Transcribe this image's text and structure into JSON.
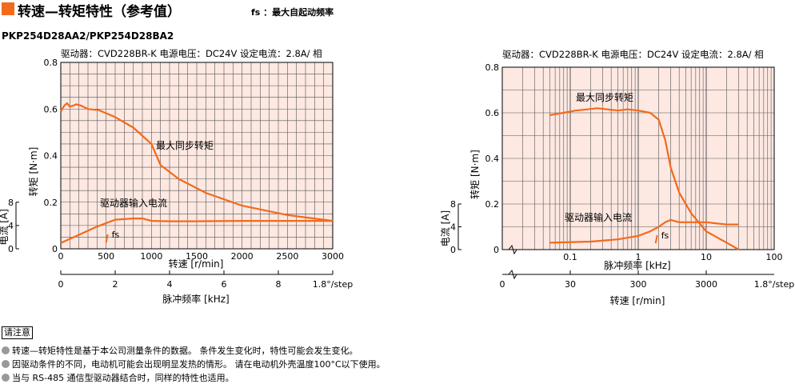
{
  "header": {
    "title": "转速—转矩特性（参考值）",
    "fs_note": "fs ：最大自起动频率"
  },
  "model": "PKP254D28AA2/PKP254D28BA2",
  "colors": {
    "accent": "#f26a1b",
    "plot_bg": "#fde8e2",
    "curve": "#f26a1b"
  },
  "chart_data": [
    {
      "type": "line",
      "subtitle": "驱动器：CVD228BR-K  电源电压：DC24V  设定电流：2.8A/ 相",
      "xscale": "linear",
      "xlabel": "转速 [r/min]",
      "xlim": [
        0,
        3000
      ],
      "xticks": [
        0,
        500,
        1000,
        1500,
        2000,
        2500,
        3000
      ],
      "ylabel": "转矩 [N·m]",
      "ylim": [
        0,
        0.8
      ],
      "yticks": [
        0,
        0.2,
        0.4,
        0.6,
        0.8
      ],
      "y2label": "电流 [A]",
      "y2ticks": [
        0,
        4,
        8
      ],
      "x2label": "脉冲频率 [kHz]",
      "x2ticks": [
        "0",
        "2",
        "4",
        "6",
        "8"
      ],
      "x2_unit": "1.8°/step",
      "grid": true,
      "series": [
        {
          "name": "最大同步转矩",
          "x": [
            0,
            40,
            70,
            100,
            140,
            170,
            220,
            300,
            420,
            600,
            800,
            1000,
            1100,
            1300,
            1600,
            2000,
            2500,
            3000
          ],
          "y": [
            0.59,
            0.615,
            0.625,
            0.61,
            0.615,
            0.62,
            0.615,
            0.6,
            0.595,
            0.565,
            0.52,
            0.45,
            0.36,
            0.3,
            0.24,
            0.185,
            0.145,
            0.12
          ]
        },
        {
          "name": "驱动器输入电流",
          "x": [
            0,
            200,
            400,
            600,
            800,
            900,
            1000,
            1200,
            1500,
            2000,
            2500,
            3000
          ],
          "y": [
            0.025,
            0.06,
            0.095,
            0.125,
            0.13,
            0.13,
            0.12,
            0.118,
            0.118,
            0.12,
            0.12,
            0.12
          ]
        }
      ],
      "fs_label": "fs",
      "fs_x": 500
    },
    {
      "type": "line",
      "subtitle": "驱动器：CVD228BR-K  电源电压：DC24V  设定电流：2.8A/ 相",
      "xscale": "log",
      "xlabel": "脉冲频率 [kHz]",
      "xlim": [
        0.01,
        100
      ],
      "xticks": [
        "0.1",
        "1",
        "10",
        "100"
      ],
      "ylabel": "转矩 [N·m]",
      "ylim": [
        0,
        0.8
      ],
      "yticks": [
        0,
        0.2,
        0.4,
        0.6,
        0.8
      ],
      "y2label": "电流 [A]",
      "y2ticks": [
        0,
        4,
        8
      ],
      "x2label": "转速 [r/min]",
      "x2ticks": [
        "0",
        "30",
        "300",
        "3000"
      ],
      "x2_unit": "1.8°/step",
      "grid": true,
      "series": [
        {
          "name": "最大同步转矩",
          "x": [
            0.05,
            0.08,
            0.12,
            0.18,
            0.25,
            0.35,
            0.5,
            0.7,
            1.0,
            1.5,
            2.0,
            2.5,
            3.0,
            4.0,
            6.0,
            10,
            20,
            30
          ],
          "y": [
            0.59,
            0.6,
            0.61,
            0.615,
            0.62,
            0.615,
            0.61,
            0.615,
            0.61,
            0.6,
            0.57,
            0.48,
            0.36,
            0.25,
            0.16,
            0.08,
            0.03,
            0.0
          ]
        },
        {
          "name": "驱动器输入电流",
          "x": [
            0.05,
            0.2,
            0.5,
            1.0,
            1.5,
            2.0,
            2.5,
            3.0,
            4.0,
            6.0,
            10,
            20,
            30
          ],
          "y": [
            0.03,
            0.035,
            0.045,
            0.06,
            0.08,
            0.1,
            0.12,
            0.13,
            0.12,
            0.12,
            0.12,
            0.11,
            0.11
          ]
        }
      ],
      "fs_label": "fs",
      "fs_x": 1.8
    }
  ],
  "notes": {
    "title": "请注意",
    "items": [
      "转速—转矩特性是基于本公司测量条件的数据。 条件发生变化时，特性可能会发生变化。",
      "因驱动条件的不同，电动机可能会出现明显发热的情形。 请在电动机外壳温度100°C以下使用。",
      "当与 RS-485 通信型驱动器结合时，同样的特性也适用。"
    ]
  }
}
